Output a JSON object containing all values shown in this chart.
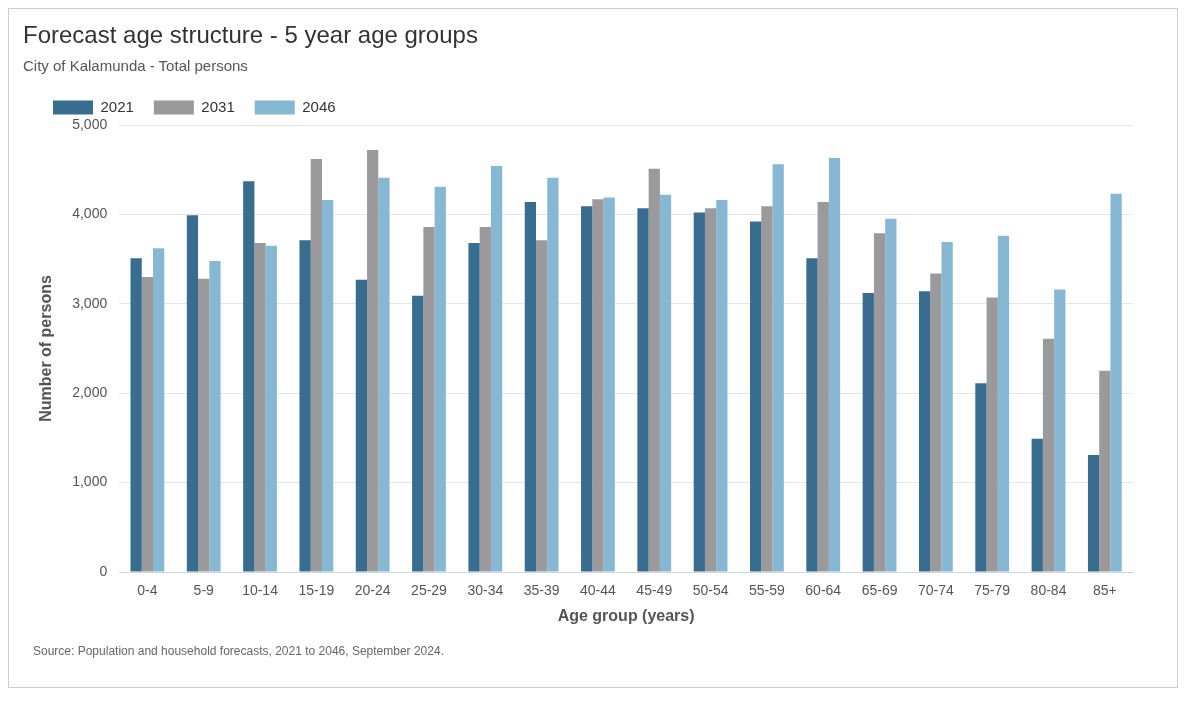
{
  "chart_data": {
    "type": "bar",
    "title": "Forecast age structure - 5 year age groups",
    "subtitle": "City of Kalamunda - Total persons",
    "xlabel": "Age group (years)",
    "ylabel": "Number of persons",
    "categories": [
      "0-4",
      "5-9",
      "10-14",
      "15-19",
      "20-24",
      "25-29",
      "30-34",
      "35-39",
      "40-44",
      "45-49",
      "50-54",
      "55-59",
      "60-64",
      "65-69",
      "70-74",
      "75-79",
      "80-84",
      "85+"
    ],
    "series": [
      {
        "name": "2021",
        "color": "#386d8f",
        "values": [
          3510,
          3990,
          4370,
          3710,
          3270,
          3090,
          3680,
          4140,
          4090,
          4070,
          4020,
          3920,
          3510,
          3120,
          3140,
          2110,
          1490,
          1310
        ]
      },
      {
        "name": "2031",
        "color": "#9a9a9c",
        "values": [
          3300,
          3280,
          3680,
          4620,
          4720,
          3860,
          3860,
          3710,
          4170,
          4510,
          4070,
          4090,
          4140,
          3790,
          3340,
          3070,
          2610,
          2250
        ]
      },
      {
        "name": "2046",
        "color": "#86b8d3",
        "values": [
          3620,
          3480,
          3650,
          4160,
          4410,
          4310,
          4540,
          4410,
          4190,
          4220,
          4160,
          4560,
          4630,
          3950,
          3690,
          3760,
          3160,
          4230
        ]
      }
    ],
    "ylim": [
      0,
      5000
    ],
    "yticks": [
      {
        "value": 0,
        "label": "0"
      },
      {
        "value": 1000,
        "label": "1,000"
      },
      {
        "value": 2000,
        "label": "2,000"
      },
      {
        "value": 3000,
        "label": "3,000"
      },
      {
        "value": 4000,
        "label": "4,000"
      },
      {
        "value": 5000,
        "label": "5,000"
      }
    ],
    "grid": "y",
    "legend": "top left",
    "annotations": [
      "Source: Population and household forecasts, 2021 to 2046, September 2024."
    ]
  }
}
